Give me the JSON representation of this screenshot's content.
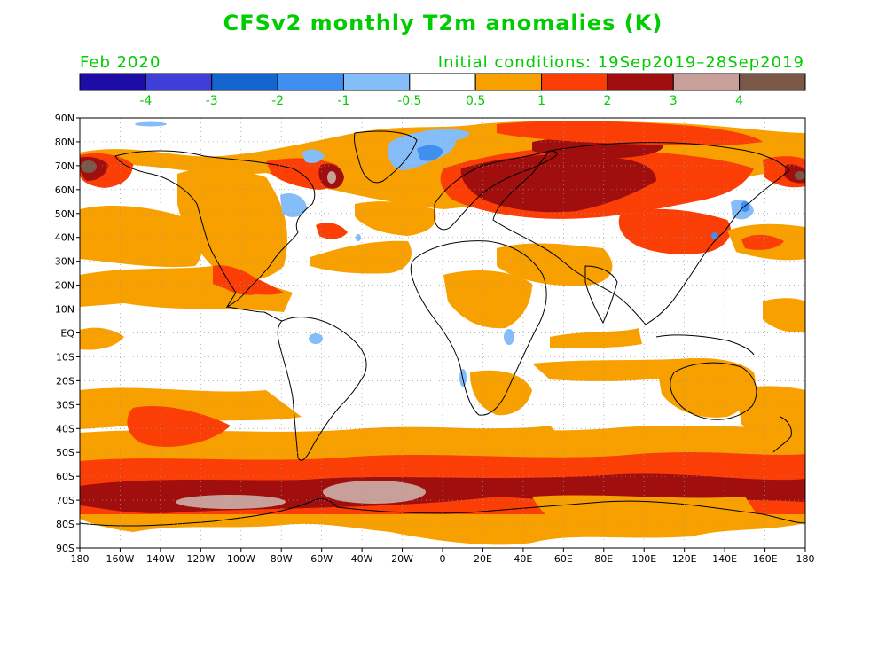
{
  "title": "CFSv2 monthly T2m anomalies (K)",
  "forecast_month": "Feb 2020",
  "initial_conditions": "Initial conditions: 19Sep2019–28Sep2019",
  "colorbar": {
    "bins": [
      {
        "color": "#1d0ca6"
      },
      {
        "color": "#3f3fd8"
      },
      {
        "color": "#1565d0"
      },
      {
        "color": "#3f8ff0"
      },
      {
        "color": "#85bdf8"
      },
      {
        "color": "#ffffff"
      },
      {
        "color": "#f7a000"
      },
      {
        "color": "#fb3d06"
      },
      {
        "color": "#a00e0e"
      },
      {
        "color": "#c8a099"
      },
      {
        "color": "#7b5747"
      }
    ],
    "labels": [
      "-4",
      "-3",
      "-2",
      "-1",
      "-0.5",
      "0.5",
      "1",
      "2",
      "3",
      "4"
    ]
  },
  "lat_labels": [
    "90N",
    "80N",
    "70N",
    "60N",
    "50N",
    "40N",
    "30N",
    "20N",
    "10N",
    "EQ",
    "10S",
    "20S",
    "30S",
    "40S",
    "50S",
    "60S",
    "70S",
    "80S",
    "90S"
  ],
  "lon_labels": [
    "180",
    "160W",
    "140W",
    "120W",
    "100W",
    "80W",
    "60W",
    "40W",
    "20W",
    "0",
    "20E",
    "40E",
    "60E",
    "80E",
    "100E",
    "120E",
    "140E",
    "160E",
    "180"
  ],
  "colors": {
    "light_orange": "#f7a000",
    "red": "#fb3d06",
    "dark_red": "#a00e0e",
    "pink_brown": "#c8a099",
    "brown": "#7b5747",
    "light_blue": "#85bdf8",
    "blue": "#3f8ff0",
    "text_green": "#00cc00"
  }
}
